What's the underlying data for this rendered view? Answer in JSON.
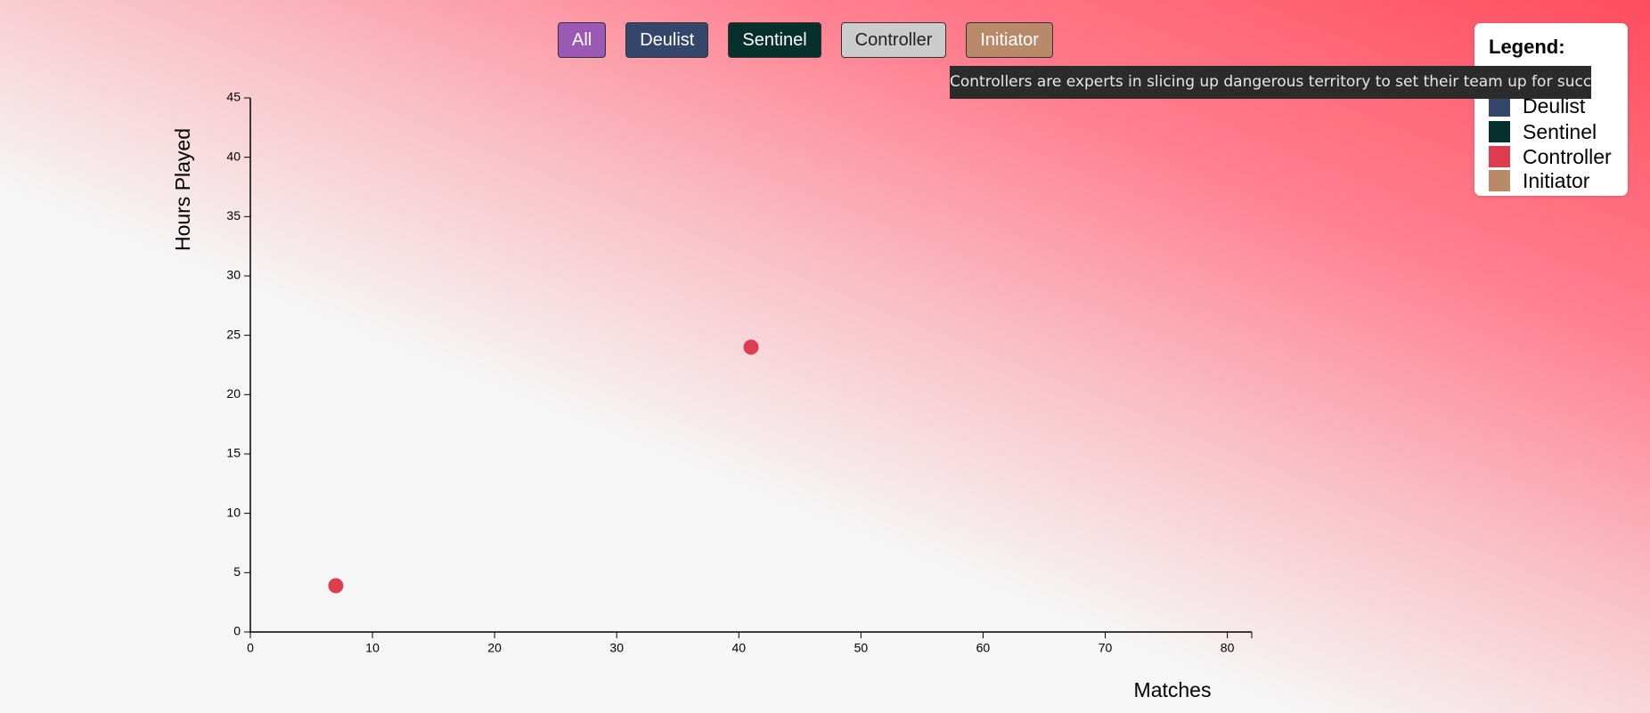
{
  "filters": [
    {
      "label": "All",
      "color": "#9b59b6",
      "text_color": "#ffffff"
    },
    {
      "label": "Deulist",
      "color": "#34466a",
      "text_color": "#ffffff"
    },
    {
      "label": "Sentinel",
      "color": "#06302c",
      "text_color": "#ffffff"
    },
    {
      "label": "Controller",
      "color": "#cccccc",
      "text_color": "#222222"
    },
    {
      "label": "Initiator",
      "color": "#b98a6a",
      "text_color": "#ffffff"
    }
  ],
  "tooltip": "Controllers are experts in slicing up dangerous territory to set their team up for success.",
  "legend_title": "Legend:",
  "chart_data": {
    "type": "scatter",
    "x_label": "Matches",
    "y_label": "Hours Played",
    "x": [
      7,
      41
    ],
    "series": [
      {
        "name": "Deulist",
        "color": "#34466a",
        "values": [
          null,
          null
        ]
      },
      {
        "name": "Sentinel",
        "color": "#06302c",
        "values": [
          null,
          null
        ]
      },
      {
        "name": "Controller",
        "color": "#dc3d4f",
        "values": [
          3.9,
          24
        ]
      },
      {
        "name": "Initiator",
        "color": "#b98a6a",
        "values": [
          null,
          null
        ]
      }
    ],
    "xlim": [
      0,
      82
    ],
    "ylim": [
      0,
      45
    ],
    "xticks": [
      0,
      10,
      20,
      30,
      40,
      50,
      60,
      70,
      80
    ],
    "yticks": [
      0,
      5,
      10,
      15,
      20,
      25,
      30,
      35,
      40,
      45
    ]
  }
}
